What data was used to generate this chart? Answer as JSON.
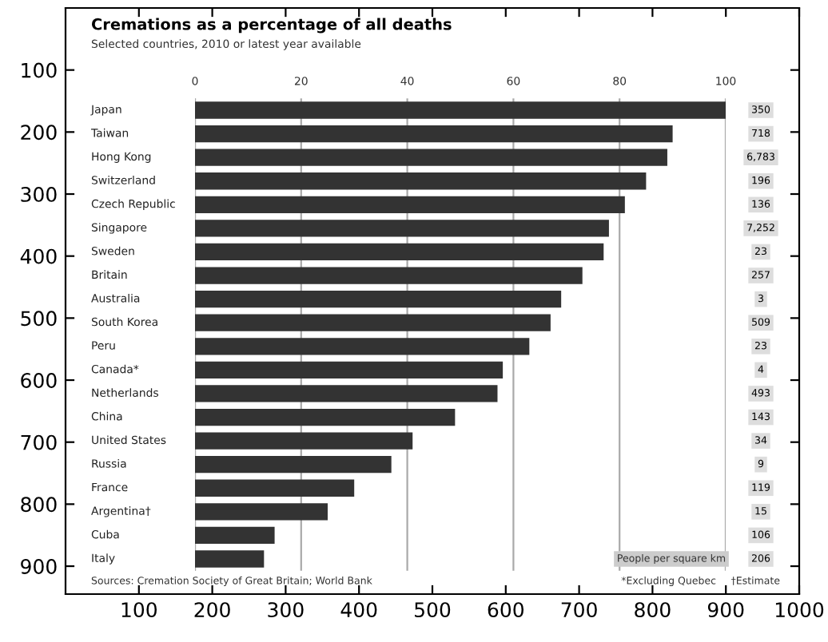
{
  "chart_data": [
    {
      "type": "scatter",
      "xlim": [
        0,
        1000
      ],
      "ylim": [
        945,
        0
      ],
      "xticks": [
        100,
        200,
        300,
        400,
        500,
        600,
        700,
        800,
        900,
        1000
      ],
      "yticks": [
        100,
        200,
        300,
        400,
        500,
        600,
        700,
        800,
        900
      ]
    },
    {
      "type": "bar",
      "orientation": "horizontal",
      "title": "Cremations as a percentage of all deaths",
      "subtitle": "Selected countries, 2010 or latest year available",
      "categories": [
        "Japan",
        "Taiwan",
        "Hong Kong",
        "Switzerland",
        "Czech Republic",
        "Singapore",
        "Sweden",
        "Britain",
        "Australia",
        "South Korea",
        "Peru",
        "Canada*",
        "Netherlands",
        "China",
        "United States",
        "Russia",
        "France",
        "Argentina†",
        "Cuba",
        "Italy"
      ],
      "values": [
        100,
        90,
        89,
        85,
        81,
        78,
        77,
        73,
        69,
        67,
        63,
        58,
        57,
        49,
        41,
        37,
        30,
        25,
        15,
        13
      ],
      "color": "#333333",
      "xlim": [
        0,
        100
      ],
      "xticks": [
        0,
        20,
        40,
        60,
        80,
        100
      ],
      "grid": "x",
      "annotations": [
        "350",
        "718",
        "6,783",
        "196",
        "136",
        "7,252",
        "23",
        "257",
        "3",
        "509",
        "23",
        "4",
        "493",
        "143",
        "34",
        "9",
        "119",
        "15",
        "106",
        "206",
        "People per square km",
        "Sources: Cremation Society of Great Britain; World Bank",
        "*Excluding Quebec",
        "†Estimate"
      ]
    }
  ]
}
